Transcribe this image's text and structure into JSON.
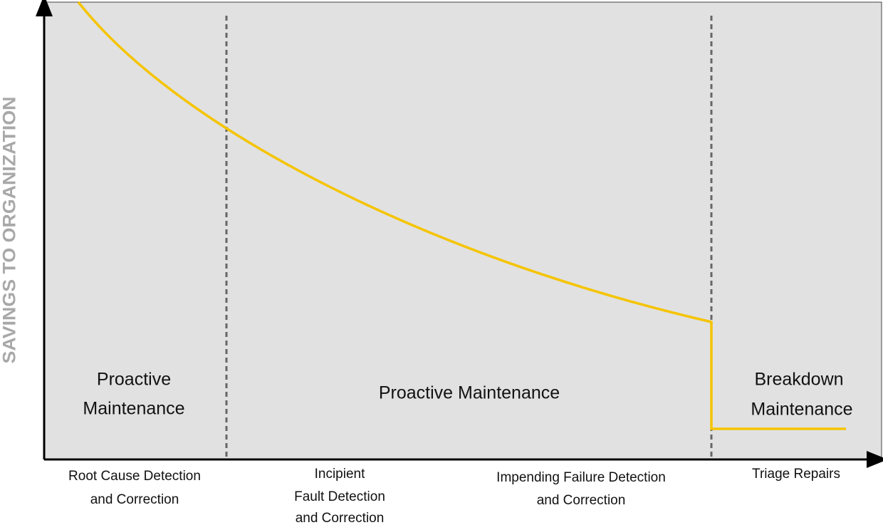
{
  "y_axis_label": "SAVINGS TO ORGANIZATION",
  "regions": [
    {
      "lines": [
        "Proactive",
        "Maintenance"
      ]
    },
    {
      "lines": [
        "Proactive Maintenance"
      ]
    },
    {
      "lines": [
        "Breakdown",
        "Maintenance"
      ]
    }
  ],
  "stages": [
    {
      "lines": [
        "Root Cause Detection",
        "and Correction"
      ]
    },
    {
      "lines": [
        "Incipient",
        "Fault Detection",
        "and Correction"
      ]
    },
    {
      "lines": [
        "Impending Failure Detection",
        "and Correction"
      ]
    },
    {
      "lines": [
        "Triage Repairs"
      ]
    }
  ]
}
